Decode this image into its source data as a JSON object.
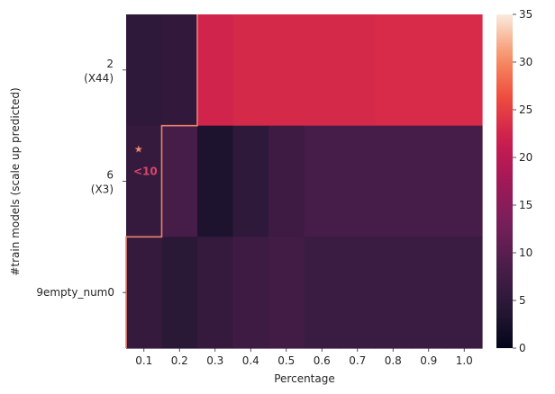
{
  "chart_data": {
    "type": "heatmap",
    "title": "",
    "xlabel": "Percentage",
    "ylabel": "#train models (scale up predicted)",
    "x_categories": [
      "0.1",
      "0.2",
      "0.3",
      "0.4",
      "0.5",
      "0.6",
      "0.7",
      "0.8",
      "0.9",
      "1.0"
    ],
    "y_categories": [
      {
        "line1": "2",
        "line2": "(X44)"
      },
      {
        "line1": "6",
        "line2": "(X3)"
      },
      {
        "line1": "9empty_num0",
        "line2": ""
      }
    ],
    "values": [
      [
        5.0,
        5.5,
        22.5,
        23.0,
        23.0,
        23.0,
        23.0,
        23.2,
        23.2,
        23.2
      ],
      [
        6.0,
        8.0,
        3.0,
        5.0,
        7.0,
        8.0,
        8.0,
        8.0,
        8.0,
        8.0
      ],
      [
        6.0,
        4.5,
        6.0,
        7.0,
        7.5,
        6.5,
        6.5,
        6.5,
        6.5,
        6.5
      ]
    ],
    "colorbar": {
      "min": 0,
      "max": 35,
      "ticks": [
        0,
        5,
        10,
        15,
        20,
        25,
        30,
        35
      ]
    },
    "colormap": "rocket",
    "boundary_color": "#e9826c",
    "boundary_threshold_cols": [
      2,
      1,
      0
    ],
    "annotations": [
      {
        "row": 1,
        "col": 0,
        "symbol": "★",
        "text": "<10"
      }
    ]
  }
}
